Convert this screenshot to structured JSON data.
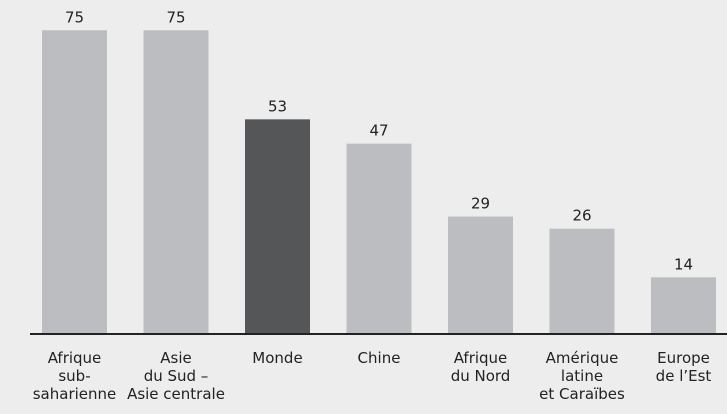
{
  "chart_data": {
    "type": "bar",
    "categories": [
      "Afrique\nsub-\nsaharienne",
      "Asie\ndu Sud –\nAsie centrale",
      "Monde",
      "Chine",
      "Afrique\ndu Nord",
      "Amérique\nlatine\net Caraïbes",
      "Europe\nde l’Est"
    ],
    "values": [
      75,
      75,
      53,
      47,
      29,
      26,
      14
    ],
    "colors": [
      "#bcbdc0",
      "#bcbdc0",
      "#555658",
      "#bcbdc0",
      "#bcbdc0",
      "#bcbdc0",
      "#bcbdc0"
    ]
  }
}
